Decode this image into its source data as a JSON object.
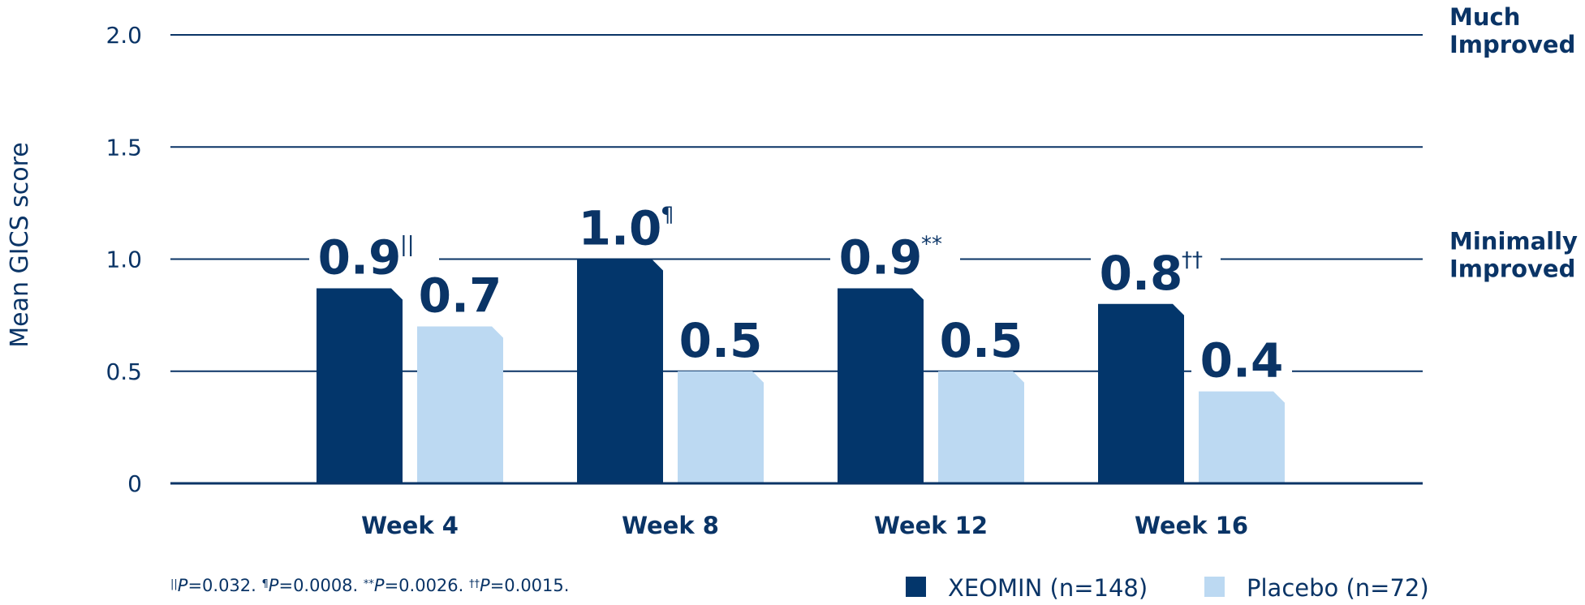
{
  "colors": {
    "xeomin": "#03366b",
    "placebo": "#bcd9f2",
    "text": "#0a3466",
    "gridline": "#0a3466"
  },
  "chart_data": {
    "type": "bar",
    "ylabel": "Mean GICS score",
    "xlabel": "",
    "ylim": [
      0,
      2.0
    ],
    "yticks": [
      {
        "value": 0,
        "label": "0"
      },
      {
        "value": 0.5,
        "label": "0.5"
      },
      {
        "value": 1.0,
        "label": "1.0"
      },
      {
        "value": 1.5,
        "label": "1.5"
      },
      {
        "value": 2.0,
        "label": "2.0"
      }
    ],
    "grid": true,
    "categories": [
      "Week 4",
      "Week 8",
      "Week 12",
      "Week 16"
    ],
    "series": [
      {
        "name": "XEOMIN (n=148)",
        "values": [
          0.87,
          1.0,
          0.87,
          0.8
        ],
        "labels": [
          "0.9",
          "1.0",
          "0.9",
          "0.8"
        ],
        "label_marks": [
          "||",
          "¶",
          "**",
          "††"
        ]
      },
      {
        "name": "Placebo (n=72)",
        "values": [
          0.7,
          0.5,
          0.5,
          0.41
        ],
        "labels": [
          "0.7",
          "0.5",
          "0.5",
          "0.4"
        ],
        "label_marks": [
          "",
          "",
          "",
          ""
        ]
      }
    ],
    "reference_labels": [
      {
        "value": 2.0,
        "line1": "Much",
        "line2": "Improved"
      },
      {
        "value": 1.0,
        "line1": "Minimally",
        "line2": "Improved"
      }
    ],
    "legend_position": "bottom-right"
  },
  "footnote": [
    {
      "symbol": "||",
      "p": "P",
      "rest": "=0.032. "
    },
    {
      "symbol": "¶",
      "p": "P",
      "rest": "=0.0008. "
    },
    {
      "symbol": "**",
      "p": "P",
      "rest": "=0.0026. "
    },
    {
      "symbol": "††",
      "p": "P",
      "rest": "=0.0015."
    }
  ]
}
